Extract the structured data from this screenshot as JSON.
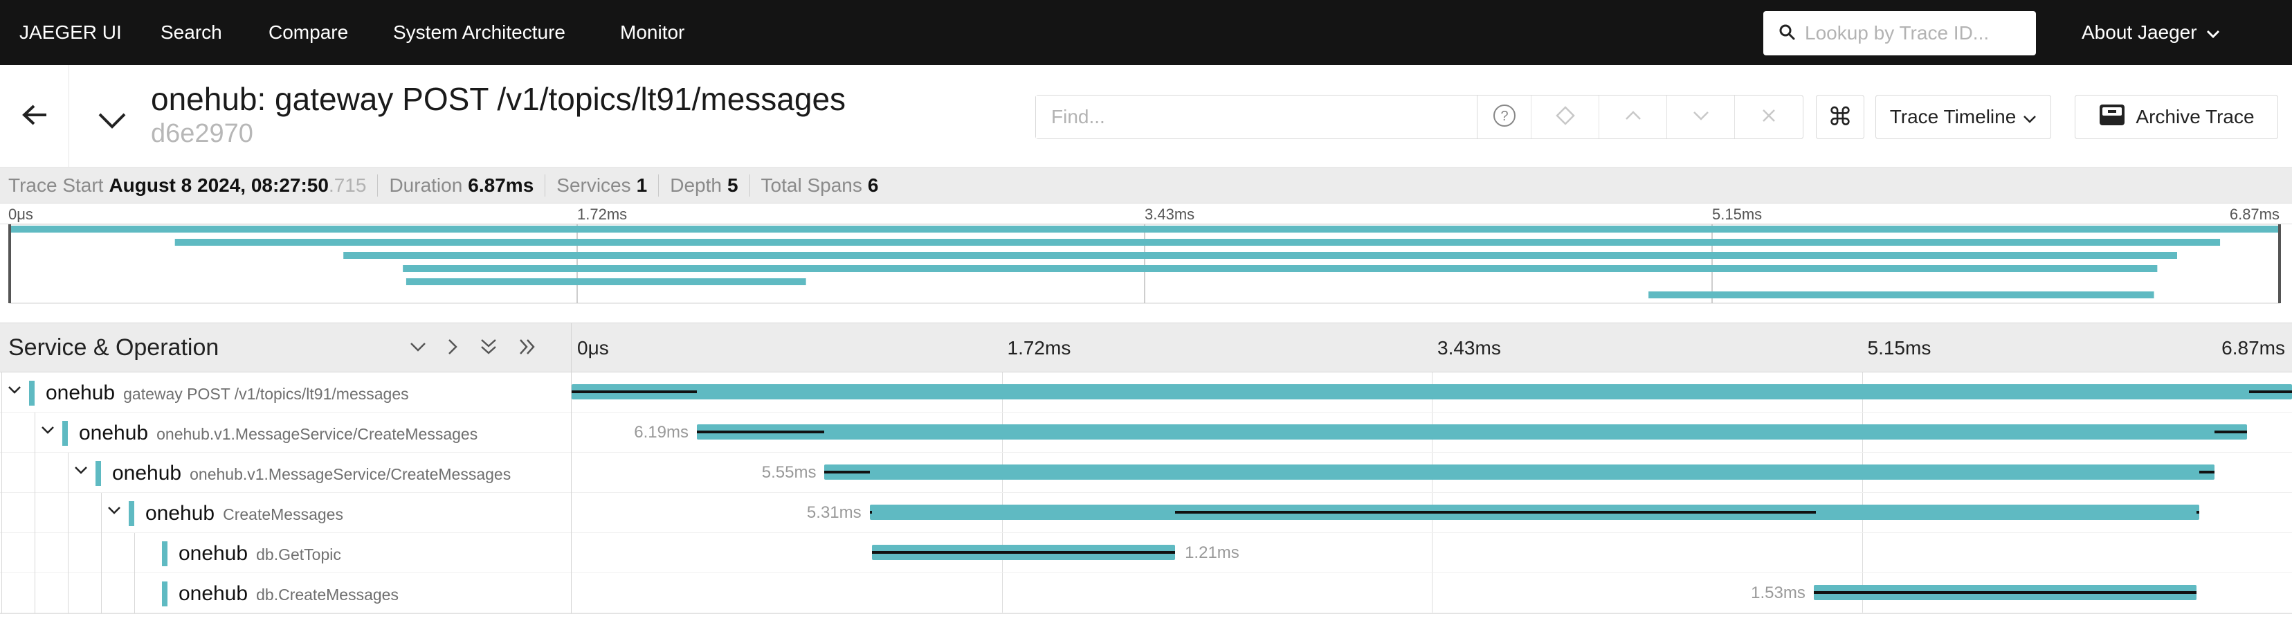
{
  "nav": {
    "brand": "JAEGER UI",
    "items": [
      "Search",
      "Compare",
      "System Architecture",
      "Monitor"
    ],
    "search_placeholder": "Lookup by Trace ID...",
    "about": "About Jaeger"
  },
  "trace": {
    "title": "onehub: gateway POST /v1/topics/lt91/messages",
    "id": "d6e2970",
    "find_placeholder": "Find...",
    "view_mode": "Trace Timeline",
    "archive_label": "Archive Trace",
    "icons": {
      "back": "arrow-left-icon",
      "collapse": "chevron-down-icon",
      "help": "question-circle-icon",
      "focus": "diamond-icon",
      "prev": "chevron-up-icon",
      "next": "chevron-down-icon",
      "clear": "close-icon",
      "shortcuts": "command-key-icon",
      "archive": "archive-box-icon"
    }
  },
  "summary": {
    "trace_start_label": "Trace Start",
    "trace_start_value": "August 8 2024, 08:27:50",
    "trace_start_ms": ".715",
    "duration_label": "Duration",
    "duration_value": "6.87ms",
    "services_label": "Services",
    "services_value": "1",
    "depth_label": "Depth",
    "depth_value": "5",
    "total_spans_label": "Total Spans",
    "total_spans_value": "6"
  },
  "timeline": {
    "ticks": [
      "0μs",
      "1.72ms",
      "3.43ms",
      "5.15ms",
      "6.87ms"
    ],
    "column_header": "Service & Operation",
    "total_ms": 6.87,
    "span_color": "#5fbac2",
    "spans": [
      {
        "service": "onehub",
        "operation": "gateway POST /v1/topics/lt91/messages",
        "depth": 0,
        "start_ms": 0.0,
        "duration_ms": 6.87,
        "duration_label": "",
        "label_side": "none",
        "self_segments": [
          [
            0.0,
            0.5
          ],
          [
            6.7,
            6.87
          ]
        ]
      },
      {
        "service": "onehub",
        "operation": "onehub.v1.MessageService/CreateMessages",
        "depth": 1,
        "start_ms": 0.5,
        "duration_ms": 6.19,
        "duration_label": "6.19ms",
        "label_side": "left",
        "self_segments": [
          [
            0.5,
            1.01
          ],
          [
            6.56,
            6.69
          ]
        ]
      },
      {
        "service": "onehub",
        "operation": "onehub.v1.MessageService/CreateMessages",
        "depth": 2,
        "start_ms": 1.01,
        "duration_ms": 5.55,
        "duration_label": "5.55ms",
        "label_side": "left",
        "self_segments": [
          [
            1.01,
            1.19
          ],
          [
            6.5,
            6.56
          ]
        ]
      },
      {
        "service": "onehub",
        "operation": "CreateMessages",
        "depth": 3,
        "start_ms": 1.19,
        "duration_ms": 5.31,
        "duration_label": "5.31ms",
        "label_side": "left",
        "self_segments": [
          [
            1.19,
            1.2
          ],
          [
            2.41,
            4.97
          ],
          [
            6.49,
            6.5
          ]
        ]
      },
      {
        "service": "onehub",
        "operation": "db.GetTopic",
        "depth": 4,
        "start_ms": 1.2,
        "duration_ms": 1.21,
        "duration_label": "1.21ms",
        "label_side": "right",
        "self_segments": [
          [
            1.2,
            2.41
          ]
        ]
      },
      {
        "service": "onehub",
        "operation": "db.CreateMessages",
        "depth": 4,
        "start_ms": 4.96,
        "duration_ms": 1.53,
        "duration_label": "1.53ms",
        "label_side": "left",
        "self_segments": [
          [
            4.96,
            6.49
          ]
        ]
      }
    ]
  }
}
